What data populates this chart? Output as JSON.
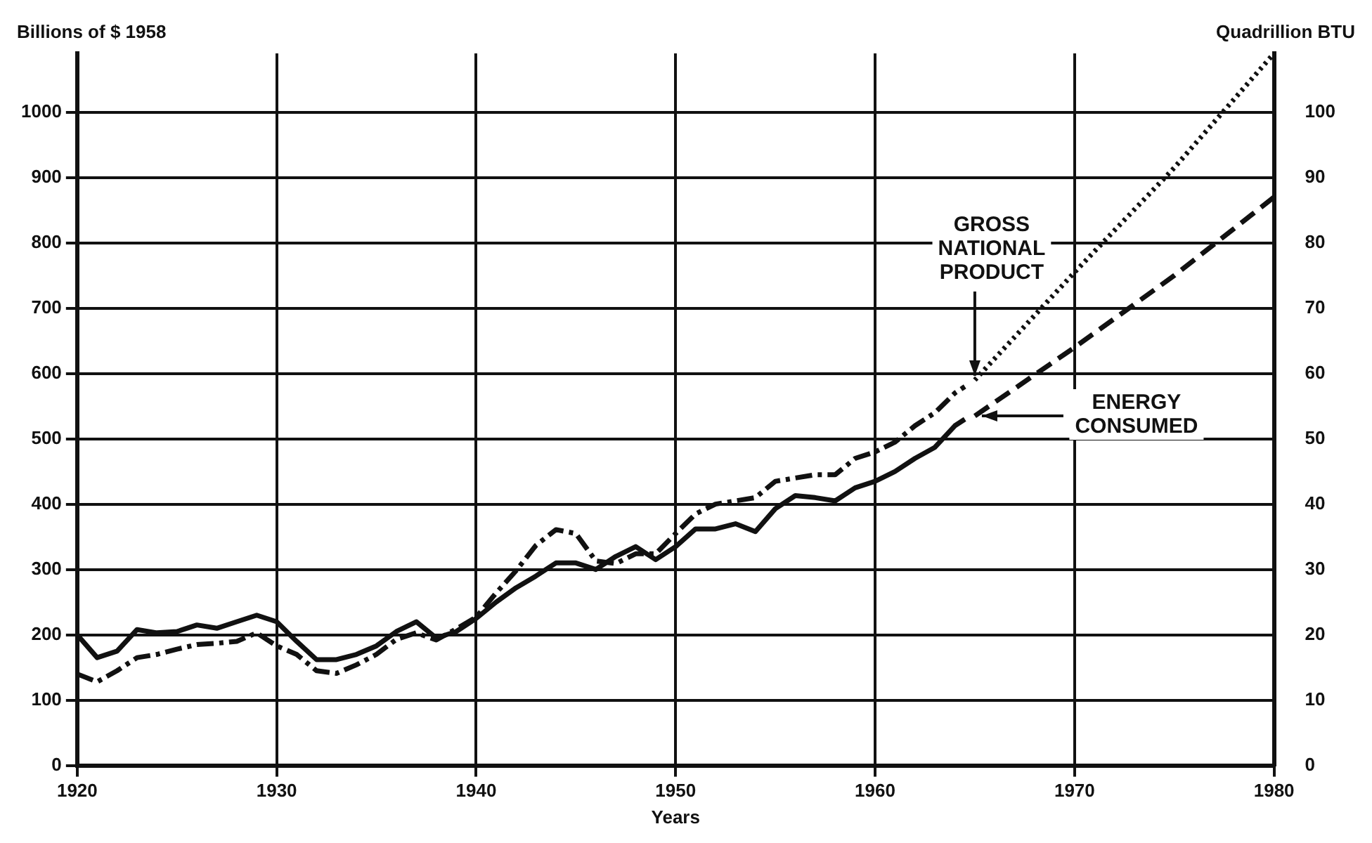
{
  "chart_data": {
    "type": "line",
    "xlabel": "Years",
    "ylabel": "Billions of $ 1958",
    "y2label": "Quadrillion BTU",
    "xlim": [
      1920,
      1980
    ],
    "xticks": [
      1920,
      1930,
      1940,
      1950,
      1960,
      1970,
      1980
    ],
    "ylim": [
      0,
      1090
    ],
    "yticks": [
      0,
      100,
      200,
      300,
      400,
      500,
      600,
      700,
      800,
      900,
      1000
    ],
    "y2lim": [
      0,
      109
    ],
    "y2ticks": [
      0,
      10,
      20,
      30,
      40,
      50,
      60,
      70,
      80,
      90,
      100
    ],
    "grid": true,
    "legend": false,
    "marker": "none",
    "annotations": [
      {
        "text": "GROSS\nNATIONAL\nPRODUCT",
        "x": 1965,
        "y": 590
      },
      "ENERGY\nCONSUMED"
    ],
    "series": [
      {
        "color": "#111111",
        "axis": "y2",
        "line_style": "solid",
        "x": [
          1920,
          1921,
          1922,
          1923,
          1924,
          1925,
          1926,
          1927,
          1928,
          1929,
          1930,
          1931,
          1932,
          1933,
          1934,
          1935,
          1936,
          1937,
          1938,
          1939,
          1940,
          1941,
          1942,
          1943,
          1944,
          1945,
          1946,
          1947,
          1948,
          1949,
          1950,
          1951,
          1952,
          1953,
          1954,
          1955,
          1956,
          1957,
          1958,
          1959,
          1960,
          1961,
          1962,
          1963,
          1964,
          1964.5
        ],
        "values": [
          20,
          16.5,
          17.5,
          20.8,
          20.3,
          20.5,
          21.5,
          21,
          22,
          23,
          22,
          19,
          16.2,
          16.2,
          17,
          18.3,
          20.5,
          22,
          19.5,
          20.5,
          22.5,
          25,
          27.2,
          29,
          31,
          31,
          30,
          32,
          33.5,
          31.5,
          33.5,
          36.2,
          36.2,
          37,
          35.8,
          39.3,
          41.3,
          41,
          40.5,
          42.5,
          43.5,
          45,
          47,
          48.7,
          52,
          53
        ]
      },
      {
        "color": "#111111",
        "axis": "y2",
        "line_style": "dashed",
        "x": [
          1965,
          1970,
          1975,
          1980
        ],
        "values": [
          53.5,
          64,
          75,
          87
        ]
      },
      {
        "color": "#111111",
        "line_style": "dashdot",
        "x": [
          1920,
          1921,
          1922,
          1923,
          1924,
          1925,
          1926,
          1927,
          1928,
          1929,
          1930,
          1931,
          1932,
          1933,
          1934,
          1935,
          1936,
          1937,
          1938,
          1939,
          1940,
          1941,
          1942,
          1943,
          1944,
          1945,
          1946,
          1947,
          1948,
          1949,
          1950,
          1951,
          1952,
          1953,
          1954,
          1955,
          1956,
          1957,
          1958,
          1959,
          1960,
          1961,
          1962,
          1963,
          1964,
          1964.5
        ],
        "values": [
          140,
          128,
          145,
          165,
          170,
          178,
          185,
          187,
          190,
          203,
          183,
          170,
          145,
          141,
          154,
          170,
          193,
          203,
          192,
          209,
          227,
          264,
          298,
          337,
          361,
          355,
          313,
          309,
          324,
          324,
          355,
          385,
          400,
          405,
          410,
          435,
          440,
          445,
          445,
          470,
          480,
          495,
          520,
          540,
          570,
          580
        ]
      },
      {
        "color": "#111111",
        "line_style": "dotted",
        "x": [
          1965,
          1970,
          1975,
          1980
        ],
        "values": [
          590,
          755,
          915,
          1090
        ]
      }
    ]
  }
}
